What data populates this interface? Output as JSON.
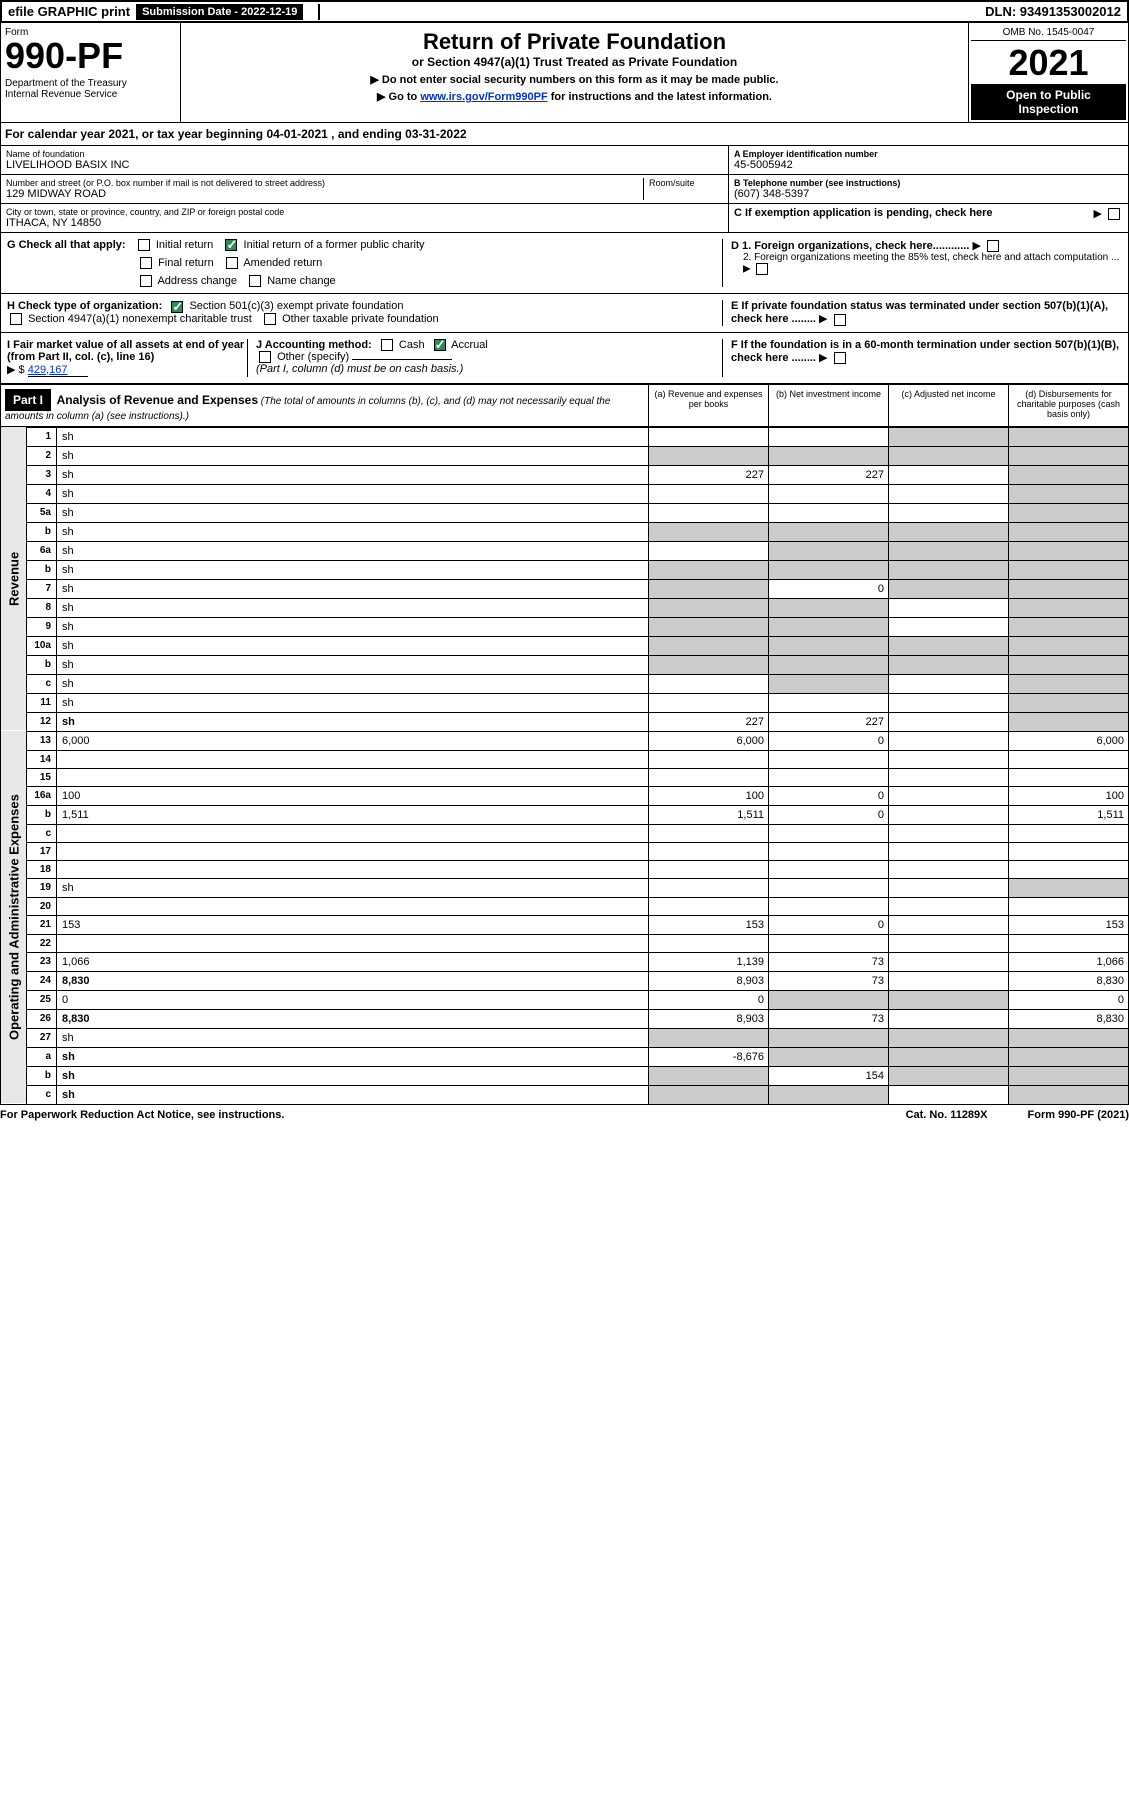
{
  "topbar": {
    "efile": "efile GRAPHIC print",
    "subdate_label": "Submission Date - 2022-12-19",
    "dln": "DLN: 93491353002012"
  },
  "header": {
    "form_label": "Form",
    "form_number": "990-PF",
    "dept": "Department of the Treasury\nInternal Revenue Service",
    "title": "Return of Private Foundation",
    "subtitle": "or Section 4947(a)(1) Trust Treated as Private Foundation",
    "instr1": "▶ Do not enter social security numbers on this form as it may be made public.",
    "instr2": "▶ Go to ",
    "instr_link": "www.irs.gov/Form990PF",
    "instr3": " for instructions and the latest information.",
    "omb": "OMB No. 1545-0047",
    "year": "2021",
    "open": "Open to Public Inspection"
  },
  "cal_year": "For calendar year 2021, or tax year beginning 04-01-2021            , and ending 03-31-2022",
  "name_block": {
    "name_label": "Name of foundation",
    "name": "LIVELIHOOD BASIX INC",
    "ein_label": "A Employer identification number",
    "ein": "45-5005942",
    "addr_label": "Number and street (or P.O. box number if mail is not delivered to street address)",
    "addr": "129 MIDWAY ROAD",
    "room_label": "Room/suite",
    "tel_label": "B Telephone number (see instructions)",
    "tel": "(607) 348-5397",
    "city_label": "City or town, state or province, country, and ZIP or foreign postal code",
    "city": "ITHACA, NY  14850",
    "c_label": "C If exemption application is pending, check here"
  },
  "checks": {
    "g_label": "G Check all that apply:",
    "g_opts": [
      "Initial return",
      "Initial return of a former public charity",
      "Final return",
      "Amended return",
      "Address change",
      "Name change"
    ],
    "h_label": "H Check type of organization:",
    "h1": "Section 501(c)(3) exempt private foundation",
    "h2": "Section 4947(a)(1) nonexempt charitable trust",
    "h3": "Other taxable private foundation",
    "i_label": "I Fair market value of all assets at end of year (from Part II, col. (c), line 16)",
    "i_val": "429,167",
    "j_label": "J Accounting method:",
    "j_cash": "Cash",
    "j_accrual": "Accrual",
    "j_other": "Other (specify)",
    "j_note": "(Part I, column (d) must be on cash basis.)",
    "d1": "D 1. Foreign organizations, check here............",
    "d2": "2. Foreign organizations meeting the 85% test, check here and attach computation ...",
    "e": "E  If private foundation status was terminated under section 507(b)(1)(A), check here ........",
    "f": "F  If the foundation is in a 60-month termination under section 507(b)(1)(B), check here ........"
  },
  "part1": {
    "label": "Part I",
    "title": "Analysis of Revenue and Expenses",
    "subtitle": "(The total of amounts in columns (b), (c), and (d) may not necessarily equal the amounts in column (a) (see instructions).)",
    "col_a": "(a)  Revenue and expenses per books",
    "col_b": "(b)  Net investment income",
    "col_c": "(c)  Adjusted net income",
    "col_d": "(d)  Disbursements for charitable purposes (cash basis only)"
  },
  "revenue_label": "Revenue",
  "expenses_label": "Operating and Administrative Expenses",
  "rows": [
    {
      "n": "1",
      "d": "sh",
      "a": "",
      "b": "",
      "c": "sh"
    },
    {
      "n": "2",
      "d": "sh",
      "a": "sh",
      "b": "sh",
      "c": "sh"
    },
    {
      "n": "3",
      "d": "sh",
      "a": "227",
      "b": "227",
      "c": ""
    },
    {
      "n": "4",
      "d": "sh",
      "a": "",
      "b": "",
      "c": ""
    },
    {
      "n": "5a",
      "d": "sh",
      "a": "",
      "b": "",
      "c": ""
    },
    {
      "n": "b",
      "d": "sh",
      "a": "sh",
      "b": "sh",
      "c": "sh"
    },
    {
      "n": "6a",
      "d": "sh",
      "a": "",
      "b": "sh",
      "c": "sh"
    },
    {
      "n": "b",
      "d": "sh",
      "a": "sh",
      "b": "sh",
      "c": "sh"
    },
    {
      "n": "7",
      "d": "sh",
      "a": "sh",
      "b": "0",
      "c": "sh"
    },
    {
      "n": "8",
      "d": "sh",
      "a": "sh",
      "b": "sh",
      "c": ""
    },
    {
      "n": "9",
      "d": "sh",
      "a": "sh",
      "b": "sh",
      "c": ""
    },
    {
      "n": "10a",
      "d": "sh",
      "a": "sh",
      "b": "sh",
      "c": "sh"
    },
    {
      "n": "b",
      "d": "sh",
      "a": "sh",
      "b": "sh",
      "c": "sh"
    },
    {
      "n": "c",
      "d": "sh",
      "a": "",
      "b": "sh",
      "c": ""
    },
    {
      "n": "11",
      "d": "sh",
      "a": "",
      "b": "",
      "c": ""
    },
    {
      "n": "12",
      "d": "sh",
      "a": "227",
      "b": "227",
      "c": "",
      "bold": true
    },
    {
      "n": "13",
      "d": "6,000",
      "a": "6,000",
      "b": "0",
      "c": ""
    },
    {
      "n": "14",
      "d": "",
      "a": "",
      "b": "",
      "c": ""
    },
    {
      "n": "15",
      "d": "",
      "a": "",
      "b": "",
      "c": ""
    },
    {
      "n": "16a",
      "d": "100",
      "a": "100",
      "b": "0",
      "c": ""
    },
    {
      "n": "b",
      "d": "1,511",
      "a": "1,511",
      "b": "0",
      "c": ""
    },
    {
      "n": "c",
      "d": "",
      "a": "",
      "b": "",
      "c": ""
    },
    {
      "n": "17",
      "d": "",
      "a": "",
      "b": "",
      "c": ""
    },
    {
      "n": "18",
      "d": "",
      "a": "",
      "b": "",
      "c": ""
    },
    {
      "n": "19",
      "d": "sh",
      "a": "",
      "b": "",
      "c": ""
    },
    {
      "n": "20",
      "d": "",
      "a": "",
      "b": "",
      "c": ""
    },
    {
      "n": "21",
      "d": "153",
      "a": "153",
      "b": "0",
      "c": ""
    },
    {
      "n": "22",
      "d": "",
      "a": "",
      "b": "",
      "c": ""
    },
    {
      "n": "23",
      "d": "1,066",
      "a": "1,139",
      "b": "73",
      "c": ""
    },
    {
      "n": "24",
      "d": "8,830",
      "a": "8,903",
      "b": "73",
      "c": "",
      "bold": true
    },
    {
      "n": "25",
      "d": "0",
      "a": "0",
      "b": "sh",
      "c": "sh"
    },
    {
      "n": "26",
      "d": "8,830",
      "a": "8,903",
      "b": "73",
      "c": "",
      "bold": true
    },
    {
      "n": "27",
      "d": "sh",
      "a": "sh",
      "b": "sh",
      "c": "sh"
    },
    {
      "n": "a",
      "d": "sh",
      "a": "-8,676",
      "b": "sh",
      "c": "sh",
      "bold": true
    },
    {
      "n": "b",
      "d": "sh",
      "a": "sh",
      "b": "154",
      "c": "sh",
      "bold": true
    },
    {
      "n": "c",
      "d": "sh",
      "a": "sh",
      "b": "sh",
      "c": "",
      "bold": true
    }
  ],
  "footer": {
    "left": "For Paperwork Reduction Act Notice, see instructions.",
    "mid": "Cat. No. 11289X",
    "right": "Form 990-PF (2021)"
  }
}
